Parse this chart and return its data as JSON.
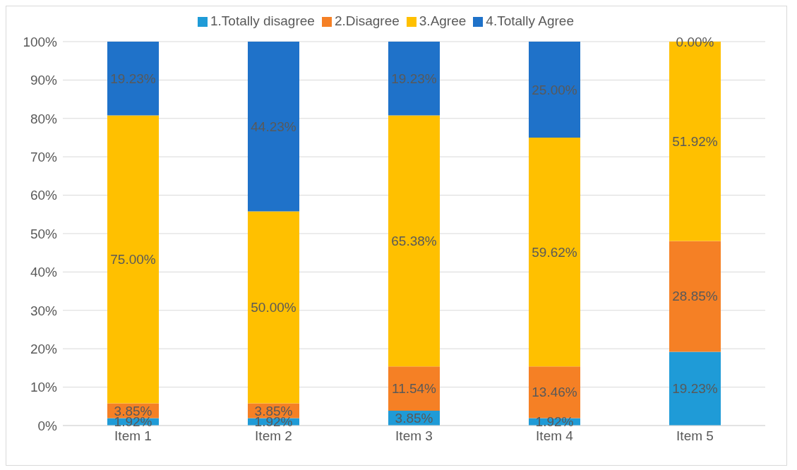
{
  "chart_data": {
    "type": "bar",
    "stacked": true,
    "categories": [
      "Item 1",
      "Item 2",
      "Item 3",
      "Item 4",
      "Item 5"
    ],
    "series": [
      {
        "name": "1.Totally disagree",
        "color": "#1f9bd7",
        "values": [
          1.92,
          1.92,
          3.85,
          1.92,
          19.23
        ],
        "value_labels": [
          "1.92%",
          "1.92%",
          "3.85%",
          "1.92%",
          "19.23%"
        ]
      },
      {
        "name": "2.Disagree",
        "color": "#f58025",
        "values": [
          3.85,
          3.85,
          11.54,
          13.46,
          28.85
        ],
        "value_labels": [
          "3.85%",
          "3.85%",
          "11.54%",
          "13.46%",
          "28.85%"
        ]
      },
      {
        "name": "3.Agree",
        "color": "#ffc000",
        "values": [
          75.0,
          50.0,
          65.38,
          59.62,
          51.92
        ],
        "value_labels": [
          "75.00%",
          "50.00%",
          "65.38%",
          "59.62%",
          "51.92%"
        ]
      },
      {
        "name": "4.Totally Agree",
        "color": "#1f72c9",
        "values": [
          19.23,
          44.23,
          19.23,
          25.0,
          0.0
        ],
        "value_labels": [
          "19.23%",
          "44.23%",
          "19.23%",
          "25.00%",
          "0.00%"
        ]
      }
    ],
    "ylim": [
      0,
      100
    ],
    "yticks": [
      {
        "value": 0,
        "label": "0%"
      },
      {
        "value": 10,
        "label": "10%"
      },
      {
        "value": 20,
        "label": "20%"
      },
      {
        "value": 30,
        "label": "30%"
      },
      {
        "value": 40,
        "label": "40%"
      },
      {
        "value": 50,
        "label": "50%"
      },
      {
        "value": 60,
        "label": "60%"
      },
      {
        "value": 70,
        "label": "70%"
      },
      {
        "value": 80,
        "label": "80%"
      },
      {
        "value": 90,
        "label": "90%"
      },
      {
        "value": 100,
        "label": "100%"
      }
    ],
    "grid": "y",
    "legend": "top"
  }
}
